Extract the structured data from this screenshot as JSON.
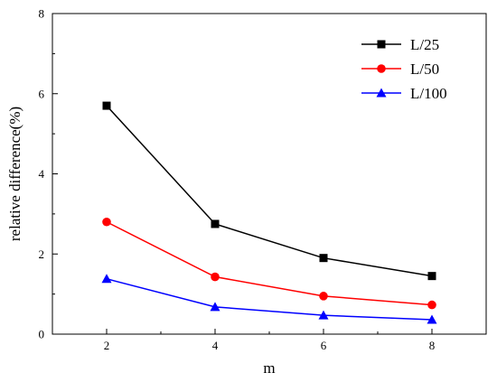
{
  "chart_data": {
    "type": "line",
    "title": "",
    "xlabel": "m",
    "ylabel": "relative difference(%)",
    "x": [
      2,
      4,
      6,
      8
    ],
    "xticks": [
      2,
      4,
      6,
      8
    ],
    "yticks": [
      0,
      2,
      4,
      6,
      8
    ],
    "xlim": [
      1,
      9
    ],
    "ylim": [
      0,
      8
    ],
    "grid": false,
    "legend": "top-right",
    "series": [
      {
        "name": "L/25",
        "values": [
          5.7,
          2.75,
          1.9,
          1.45
        ],
        "color": "#000000",
        "marker": "square"
      },
      {
        "name": "L/50",
        "values": [
          2.8,
          1.43,
          0.95,
          0.73
        ],
        "color": "#ff0000",
        "marker": "circle"
      },
      {
        "name": "L/100",
        "values": [
          1.38,
          0.68,
          0.47,
          0.36
        ],
        "color": "#0000ff",
        "marker": "triangle"
      }
    ]
  }
}
